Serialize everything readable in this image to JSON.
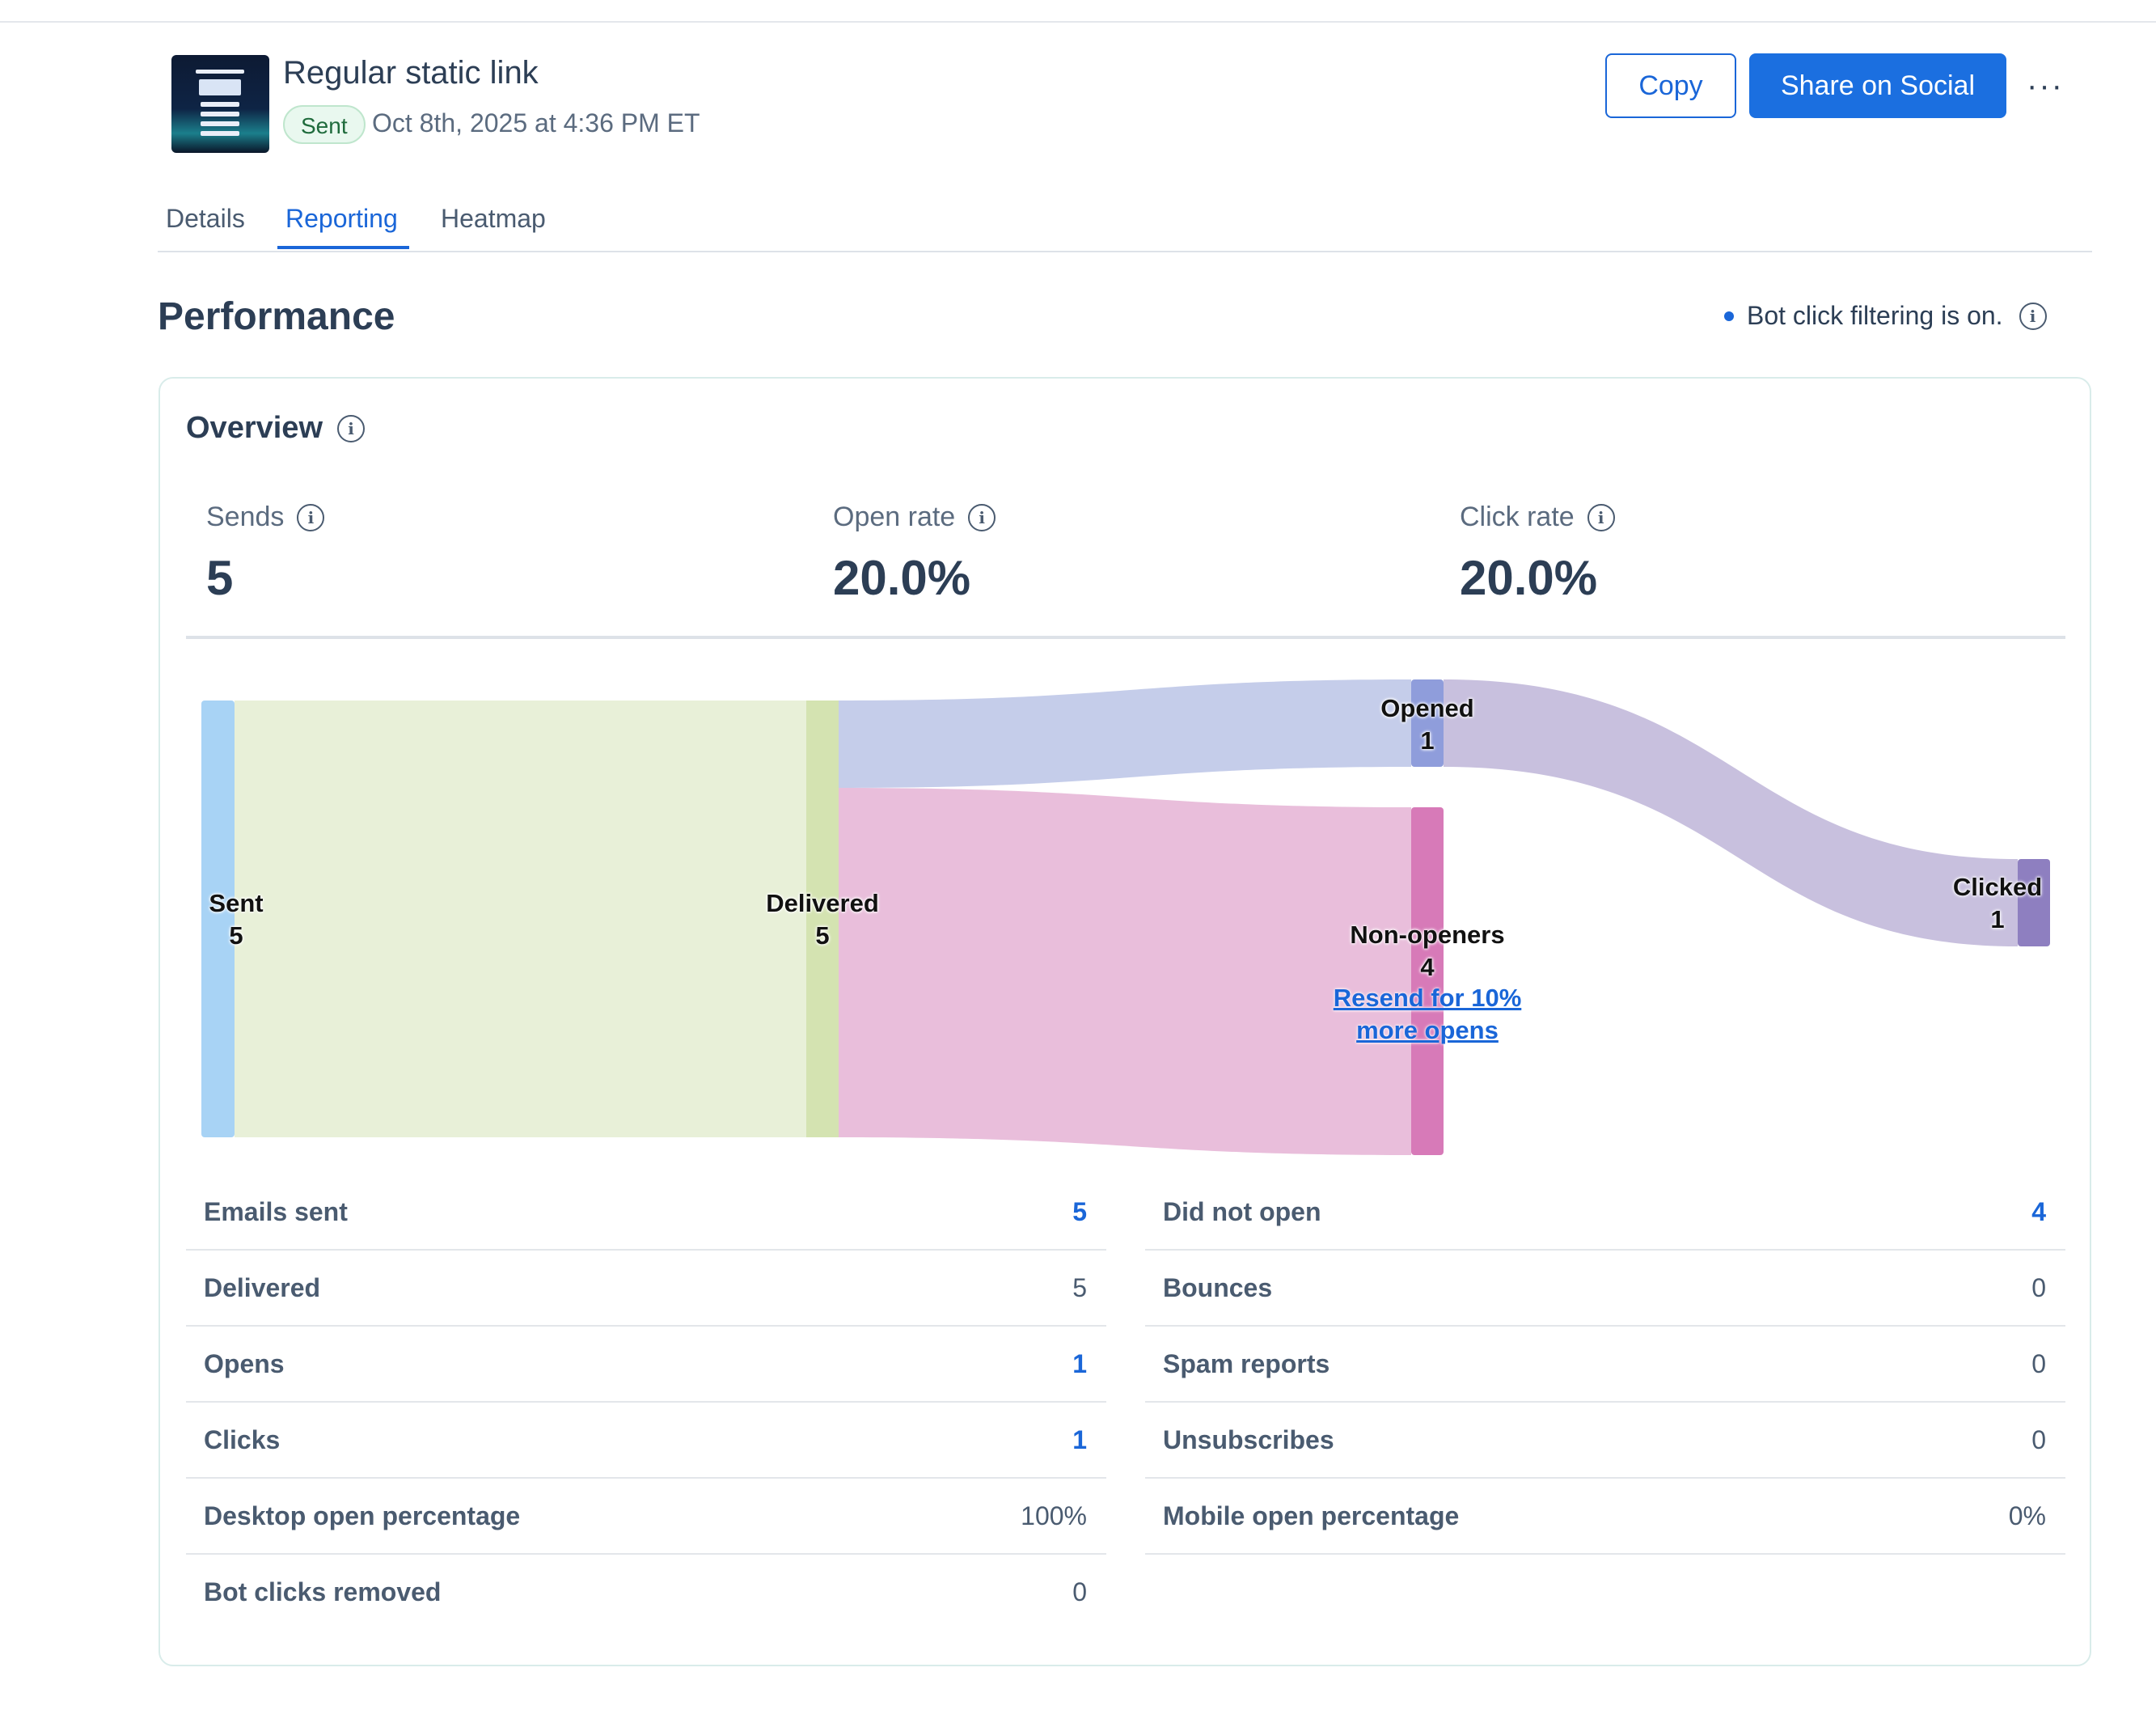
{
  "campaign": {
    "title": "Regular static link",
    "status": "Sent",
    "sent_date": "Oct 8th, 2025 at 4:36 PM ET"
  },
  "actions": {
    "copy_label": "Copy",
    "share_label": "Share on Social",
    "more_label": "···"
  },
  "tabs": [
    {
      "label": "Details",
      "active": false
    },
    {
      "label": "Reporting",
      "active": true
    },
    {
      "label": "Heatmap",
      "active": false
    }
  ],
  "performance": {
    "heading": "Performance",
    "bot_filter_note": "Bot click filtering is on."
  },
  "overview": {
    "title": "Overview",
    "stats": [
      {
        "label": "Sends",
        "value": "5"
      },
      {
        "label": "Open rate",
        "value": "20.0%"
      },
      {
        "label": "Click rate",
        "value": "20.0%"
      }
    ]
  },
  "funnel": {
    "nodes": [
      {
        "name": "Sent",
        "value": 5
      },
      {
        "name": "Delivered",
        "value": 5
      },
      {
        "name": "Opened",
        "value": 1
      },
      {
        "name": "Non-openers",
        "value": 4
      },
      {
        "name": "Clicked",
        "value": 1
      }
    ],
    "resend_link": "Resend for 10% more opens",
    "colors": {
      "sent": "#a8d3f5",
      "delivered_flow": "#e8f0d8",
      "delivered_node": "#d4e3b1",
      "opened_flow": "#c5cdea",
      "opened_node": "#8f9ddb",
      "nonopen_flow": "#e9bedb",
      "nonopen_node": "#d77ab8",
      "clicked_flow": "#c8c0de",
      "clicked_node": "#8e7fc0"
    }
  },
  "metrics_left": [
    {
      "label": "Emails sent",
      "value": "5",
      "link": true
    },
    {
      "label": "Delivered",
      "value": "5",
      "link": false
    },
    {
      "label": "Opens",
      "value": "1",
      "link": true
    },
    {
      "label": "Clicks",
      "value": "1",
      "link": true
    },
    {
      "label": "Desktop open percentage",
      "value": "100%",
      "link": false
    },
    {
      "label": "Bot clicks removed",
      "value": "0",
      "link": false
    }
  ],
  "metrics_right": [
    {
      "label": "Did not open",
      "value": "4",
      "link": true
    },
    {
      "label": "Bounces",
      "value": "0",
      "link": false
    },
    {
      "label": "Spam reports",
      "value": "0",
      "link": false
    },
    {
      "label": "Unsubscribes",
      "value": "0",
      "link": false
    },
    {
      "label": "Mobile open percentage",
      "value": "0%",
      "link": false
    }
  ]
}
